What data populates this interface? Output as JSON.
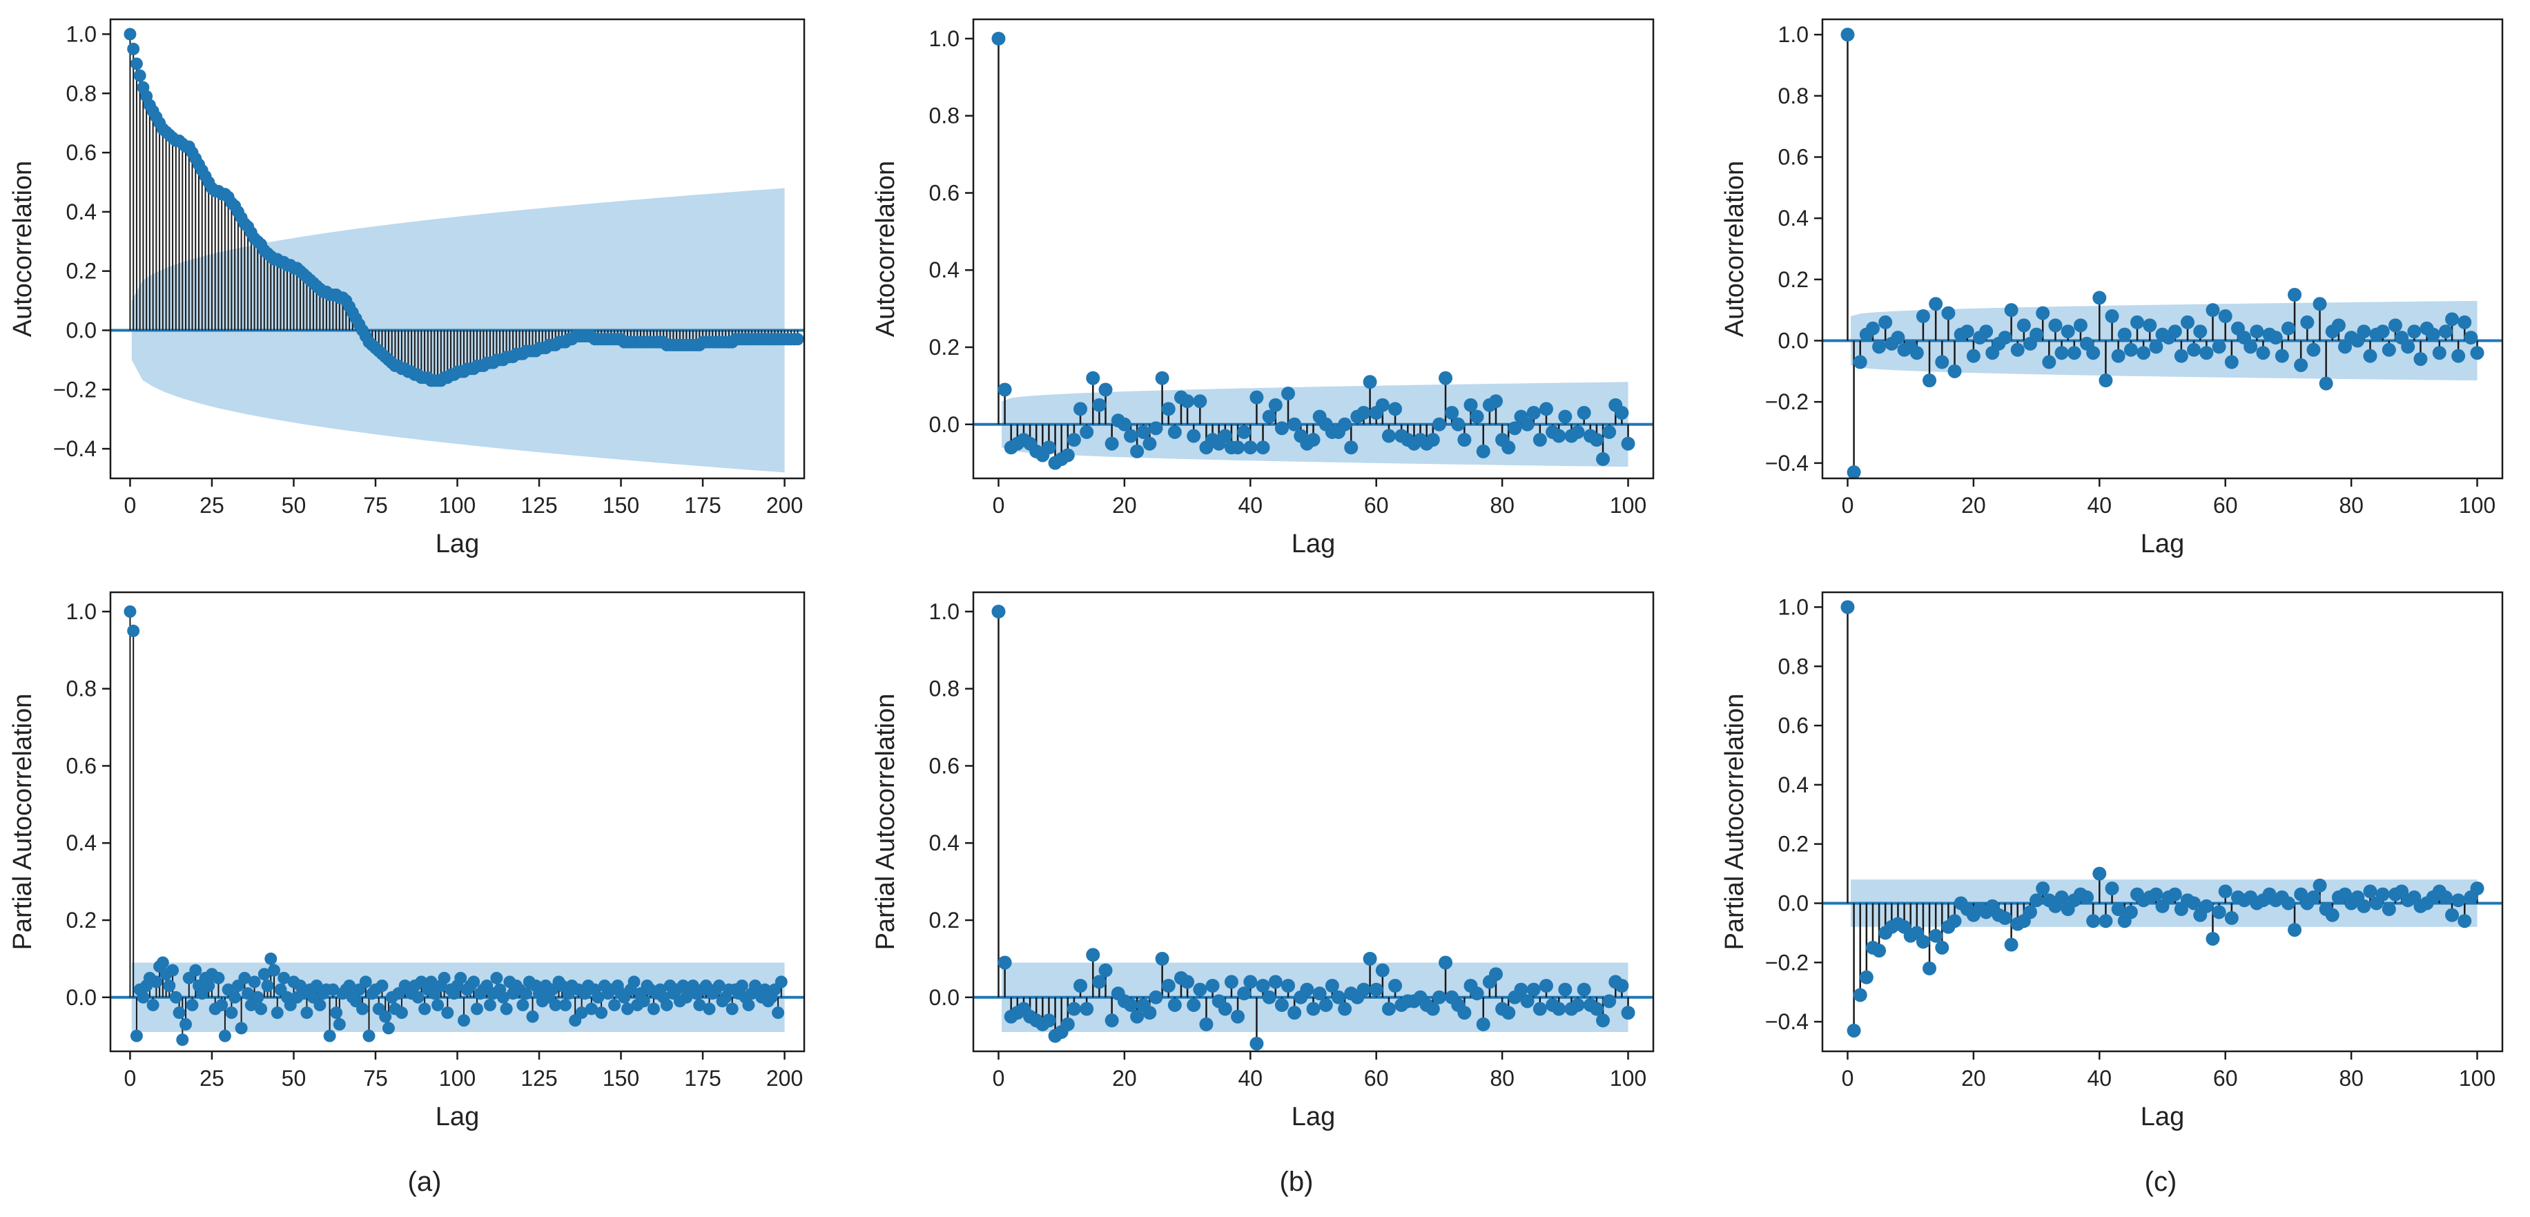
{
  "figure": {
    "panel_labels": [
      "(a)",
      "(b)",
      "(c)"
    ],
    "colors": {
      "marker": "#1f77b4",
      "stem": "#1a1a1a",
      "confidence": "#bcd9ee",
      "axis": "#1a1a1a",
      "text": "#222222"
    }
  },
  "chart_data": [
    {
      "id": "a-acf",
      "type": "stem",
      "title": "",
      "xlabel": "Lag",
      "ylabel": "Autocorrelation",
      "xlim": [
        -6,
        206
      ],
      "ylim": [
        -0.5,
        1.05
      ],
      "xticks": [
        0,
        25,
        50,
        75,
        100,
        125,
        150,
        175,
        200
      ],
      "yticks": [
        1.0,
        0.8,
        0.6,
        0.4,
        0.2,
        0.0,
        -0.2,
        -0.4
      ],
      "confidence_band": {
        "kind": "acf_growing",
        "start": 0.1,
        "end": 0.48
      },
      "x_max": 200,
      "values": [
        1.0,
        0.95,
        0.9,
        0.86,
        0.82,
        0.79,
        0.76,
        0.74,
        0.72,
        0.7,
        0.68,
        0.67,
        0.66,
        0.65,
        0.64,
        0.64,
        0.63,
        0.62,
        0.62,
        0.6,
        0.58,
        0.56,
        0.54,
        0.52,
        0.5,
        0.48,
        0.47,
        0.47,
        0.46,
        0.46,
        0.45,
        0.43,
        0.42,
        0.4,
        0.38,
        0.36,
        0.35,
        0.33,
        0.31,
        0.3,
        0.29,
        0.27,
        0.26,
        0.25,
        0.24,
        0.24,
        0.23,
        0.23,
        0.22,
        0.22,
        0.21,
        0.21,
        0.2,
        0.19,
        0.18,
        0.17,
        0.16,
        0.15,
        0.14,
        0.13,
        0.13,
        0.12,
        0.12,
        0.12,
        0.11,
        0.11,
        0.1,
        0.08,
        0.06,
        0.04,
        0.02,
        0.0,
        -0.02,
        -0.04,
        -0.05,
        -0.06,
        -0.07,
        -0.08,
        -0.09,
        -0.1,
        -0.11,
        -0.12,
        -0.12,
        -0.13,
        -0.13,
        -0.14,
        -0.14,
        -0.15,
        -0.15,
        -0.16,
        -0.16,
        -0.16,
        -0.17,
        -0.17,
        -0.17,
        -0.17,
        -0.16,
        -0.16,
        -0.15,
        -0.15,
        -0.14,
        -0.14,
        -0.14,
        -0.13,
        -0.13,
        -0.13,
        -0.12,
        -0.12,
        -0.12,
        -0.11,
        -0.11,
        -0.11,
        -0.1,
        -0.1,
        -0.1,
        -0.09,
        -0.09,
        -0.09,
        -0.08,
        -0.08,
        -0.08,
        -0.07,
        -0.07,
        -0.07,
        -0.07,
        -0.06,
        -0.06,
        -0.06,
        -0.05,
        -0.05,
        -0.05,
        -0.04,
        -0.04,
        -0.04,
        -0.03,
        -0.03,
        -0.02,
        -0.02,
        -0.02,
        -0.02,
        -0.02,
        -0.02,
        -0.03,
        -0.03,
        -0.03,
        -0.03,
        -0.03,
        -0.03,
        -0.03,
        -0.03,
        -0.03,
        -0.04,
        -0.04,
        -0.04,
        -0.04,
        -0.04,
        -0.04,
        -0.04,
        -0.04,
        -0.04,
        -0.04,
        -0.04,
        -0.04,
        -0.04,
        -0.05,
        -0.05,
        -0.05,
        -0.05,
        -0.05,
        -0.05,
        -0.05,
        -0.05,
        -0.05,
        -0.05,
        -0.05,
        -0.04,
        -0.04,
        -0.04,
        -0.04,
        -0.04,
        -0.04,
        -0.04,
        -0.04,
        -0.04,
        -0.04,
        -0.03,
        -0.03,
        -0.03,
        -0.03,
        -0.03,
        -0.03,
        -0.03,
        -0.03,
        -0.03,
        -0.03,
        -0.03,
        -0.03,
        -0.03,
        -0.03,
        -0.03,
        -0.03,
        -0.03,
        -0.03,
        -0.03,
        -0.03
      ]
    },
    {
      "id": "b-acf",
      "type": "stem",
      "title": "",
      "xlabel": "Lag",
      "ylabel": "Autocorrelation",
      "xlim": [
        -4,
        104
      ],
      "ylim": [
        -0.14,
        1.05
      ],
      "xticks": [
        0,
        20,
        40,
        60,
        80,
        100
      ],
      "yticks": [
        1.0,
        0.8,
        0.6,
        0.4,
        0.2,
        0.0
      ],
      "confidence_band": {
        "kind": "acf_growing",
        "start": 0.06,
        "end": 0.11
      },
      "x_max": 100,
      "values": [
        1.0,
        0.09,
        -0.06,
        -0.05,
        -0.04,
        -0.05,
        -0.07,
        -0.08,
        -0.06,
        -0.1,
        -0.09,
        -0.08,
        -0.04,
        0.04,
        -0.02,
        0.12,
        0.05,
        0.09,
        -0.05,
        0.01,
        0.0,
        -0.03,
        -0.07,
        -0.02,
        -0.05,
        -0.01,
        0.12,
        0.04,
        -0.02,
        0.07,
        0.06,
        -0.03,
        0.06,
        -0.06,
        -0.04,
        -0.05,
        -0.03,
        -0.06,
        -0.06,
        -0.02,
        -0.06,
        0.07,
        -0.06,
        0.02,
        0.05,
        -0.01,
        0.08,
        0.0,
        -0.03,
        -0.05,
        -0.04,
        0.02,
        0.0,
        -0.02,
        -0.02,
        0.0,
        -0.06,
        0.02,
        0.03,
        0.11,
        0.03,
        0.05,
        -0.03,
        0.04,
        -0.03,
        -0.04,
        -0.05,
        -0.04,
        -0.05,
        -0.04,
        0.0,
        0.12,
        0.03,
        0.0,
        -0.04,
        0.05,
        0.02,
        -0.07,
        0.05,
        0.06,
        -0.04,
        -0.06,
        -0.01,
        0.02,
        0.0,
        0.03,
        -0.04,
        0.04,
        -0.02,
        -0.03,
        0.02,
        -0.03,
        -0.02,
        0.03,
        -0.03,
        -0.04,
        -0.09,
        -0.02,
        0.05,
        0.03,
        -0.05
      ]
    },
    {
      "id": "c-acf",
      "type": "stem",
      "title": "",
      "xlabel": "Lag",
      "ylabel": "Autocorrelation",
      "xlim": [
        -4,
        104
      ],
      "ylim": [
        -0.45,
        1.05
      ],
      "xticks": [
        0,
        20,
        40,
        60,
        80,
        100
      ],
      "yticks": [
        1.0,
        0.8,
        0.6,
        0.4,
        0.2,
        0.0,
        -0.2,
        -0.4
      ],
      "confidence_band": {
        "kind": "acf_growing",
        "start": 0.08,
        "end": 0.13
      },
      "x_max": 100,
      "values": [
        1.0,
        -0.43,
        -0.07,
        0.02,
        0.04,
        -0.02,
        0.06,
        -0.01,
        0.01,
        -0.03,
        -0.02,
        -0.04,
        0.08,
        -0.13,
        0.12,
        -0.07,
        0.09,
        -0.1,
        0.02,
        0.03,
        -0.05,
        0.01,
        0.03,
        -0.04,
        -0.01,
        0.01,
        0.1,
        -0.03,
        0.05,
        -0.01,
        0.02,
        0.09,
        -0.07,
        0.05,
        -0.04,
        0.03,
        -0.04,
        0.05,
        -0.01,
        -0.04,
        0.14,
        -0.13,
        0.08,
        -0.05,
        0.02,
        -0.03,
        0.06,
        -0.04,
        0.05,
        -0.02,
        0.02,
        0.01,
        0.03,
        -0.05,
        0.06,
        -0.03,
        0.03,
        -0.04,
        0.1,
        -0.02,
        0.08,
        -0.07,
        0.04,
        0.01,
        -0.02,
        0.03,
        -0.04,
        0.02,
        0.01,
        -0.05,
        0.04,
        0.15,
        -0.08,
        0.06,
        -0.03,
        0.12,
        -0.14,
        0.03,
        0.05,
        -0.02,
        0.01,
        0.0,
        0.03,
        -0.05,
        0.02,
        0.03,
        -0.03,
        0.05,
        0.01,
        -0.02,
        0.03,
        -0.06,
        0.04,
        0.02,
        -0.04,
        0.03,
        0.07,
        -0.05,
        0.06,
        0.01,
        -0.04
      ]
    },
    {
      "id": "a-pacf",
      "type": "stem",
      "title": "",
      "xlabel": "Lag",
      "ylabel": "Partial Autocorrelation",
      "xlim": [
        -6,
        206
      ],
      "ylim": [
        -0.14,
        1.05
      ],
      "xticks": [
        0,
        25,
        50,
        75,
        100,
        125,
        150,
        175,
        200
      ],
      "yticks": [
        1.0,
        0.8,
        0.6,
        0.4,
        0.2,
        0.0
      ],
      "confidence_band": {
        "kind": "constant",
        "start": 0.09,
        "end": 0.09
      },
      "x_max": 200,
      "values": [
        1.0,
        0.95,
        -0.1,
        0.02,
        0.0,
        0.03,
        0.05,
        -0.02,
        0.04,
        0.08,
        0.09,
        0.06,
        0.03,
        0.07,
        0.0,
        -0.04,
        -0.11,
        -0.07,
        0.05,
        -0.02,
        0.07,
        0.03,
        0.01,
        0.05,
        0.03,
        0.06,
        -0.03,
        0.05,
        -0.02,
        -0.1,
        0.02,
        -0.04,
        0.0,
        0.03,
        -0.08,
        0.05,
        0.01,
        -0.02,
        0.04,
        0.0,
        -0.03,
        0.06,
        0.03,
        0.1,
        0.07,
        -0.04,
        0.02,
        0.05,
        0.0,
        -0.02,
        0.04,
        0.0,
        0.03,
        0.01,
        -0.04,
        0.02,
        0.0,
        0.03,
        -0.02,
        0.01,
        0.02,
        -0.1,
        0.02,
        -0.04,
        -0.07,
        0.01,
        0.02,
        0.03,
        0.0,
        -0.01,
        0.02,
        -0.03,
        0.04,
        -0.1,
        0.01,
        0.02,
        -0.03,
        0.03,
        -0.05,
        -0.08,
        0.0,
        -0.03,
        0.01,
        -0.04,
        0.03,
        0.02,
        0.01,
        0.03,
        0.0,
        0.04,
        -0.03,
        0.02,
        0.04,
        0.01,
        -0.02,
        0.03,
        0.05,
        -0.04,
        0.02,
        0.01,
        0.03,
        0.05,
        -0.06,
        0.02,
        0.03,
        0.04,
        -0.03,
        0.01,
        0.02,
        0.03,
        -0.02,
        0.01,
        0.05,
        0.02,
        0.0,
        -0.03,
        0.04,
        0.01,
        0.03,
        0.02,
        -0.02,
        0.01,
        0.04,
        -0.05,
        0.03,
        0.01,
        -0.01,
        0.03,
        0.0,
        0.02,
        -0.02,
        0.04,
        0.03,
        -0.02,
        0.01,
        0.03,
        -0.06,
        0.02,
        -0.04,
        0.01,
        0.03,
        -0.03,
        0.02,
        0.0,
        -0.04,
        0.03,
        0.01,
        0.02,
        -0.02,
        0.03,
        0.01,
        0.0,
        -0.03,
        0.02,
        0.04,
        -0.02,
        0.01,
        -0.01,
        0.03,
        0.02,
        -0.03,
        0.01,
        0.02,
        0.0,
        -0.02,
        0.03,
        0.01,
        0.02,
        -0.01,
        0.03,
        0.0,
        0.02,
        0.03,
        0.01,
        -0.02,
        0.02,
        0.03,
        -0.03,
        0.01,
        0.02,
        0.03,
        -0.01,
        0.0,
        0.02,
        -0.03,
        0.02,
        0.01,
        0.03,
        0.0,
        -0.02,
        0.01,
        0.03,
        0.02,
        0.0,
        0.02,
        -0.01,
        0.0,
        0.02,
        -0.04,
        0.04
      ]
    },
    {
      "id": "b-pacf",
      "type": "stem",
      "title": "",
      "xlabel": "Lag",
      "ylabel": "Partial Autocorrelation",
      "xlim": [
        -4,
        104
      ],
      "ylim": [
        -0.14,
        1.05
      ],
      "xticks": [
        0,
        20,
        40,
        60,
        80,
        100
      ],
      "yticks": [
        1.0,
        0.8,
        0.6,
        0.4,
        0.2,
        0.0
      ],
      "confidence_band": {
        "kind": "constant",
        "start": 0.09,
        "end": 0.09
      },
      "x_max": 100,
      "values": [
        1.0,
        0.09,
        -0.05,
        -0.04,
        -0.03,
        -0.05,
        -0.06,
        -0.07,
        -0.06,
        -0.1,
        -0.09,
        -0.07,
        -0.03,
        0.03,
        -0.03,
        0.11,
        0.04,
        0.07,
        -0.06,
        0.01,
        -0.01,
        -0.02,
        -0.05,
        -0.02,
        -0.04,
        0.0,
        0.1,
        0.03,
        -0.02,
        0.05,
        0.04,
        -0.02,
        0.02,
        -0.07,
        0.03,
        -0.01,
        -0.03,
        0.04,
        -0.05,
        0.01,
        0.04,
        -0.12,
        0.03,
        0.0,
        0.04,
        -0.02,
        0.03,
        -0.04,
        0.0,
        0.02,
        -0.03,
        0.01,
        -0.02,
        0.03,
        0.0,
        -0.03,
        0.01,
        0.0,
        0.02,
        0.1,
        0.02,
        0.07,
        -0.03,
        0.03,
        -0.02,
        -0.01,
        -0.01,
        0.0,
        -0.02,
        -0.03,
        0.0,
        0.09,
        0.0,
        -0.02,
        -0.04,
        0.03,
        0.01,
        -0.07,
        0.04,
        0.06,
        -0.03,
        -0.04,
        0.0,
        0.02,
        -0.01,
        0.02,
        -0.03,
        0.03,
        -0.02,
        -0.03,
        0.02,
        -0.03,
        -0.02,
        0.02,
        -0.02,
        -0.03,
        -0.06,
        -0.01,
        0.04,
        0.03,
        -0.04
      ]
    },
    {
      "id": "c-pacf",
      "type": "stem",
      "title": "",
      "xlabel": "Lag",
      "ylabel": "Partial Autocorrelation",
      "xlim": [
        -4,
        104
      ],
      "ylim": [
        -0.5,
        1.05
      ],
      "xticks": [
        0,
        20,
        40,
        60,
        80,
        100
      ],
      "yticks": [
        1.0,
        0.8,
        0.6,
        0.4,
        0.2,
        0.0,
        -0.2,
        -0.4
      ],
      "confidence_band": {
        "kind": "constant",
        "start": 0.08,
        "end": 0.08
      },
      "x_max": 100,
      "values": [
        1.0,
        -0.43,
        -0.31,
        -0.25,
        -0.15,
        -0.16,
        -0.1,
        -0.08,
        -0.07,
        -0.08,
        -0.11,
        -0.1,
        -0.13,
        -0.22,
        -0.11,
        -0.15,
        -0.08,
        -0.06,
        0.0,
        -0.02,
        -0.04,
        -0.02,
        -0.03,
        -0.01,
        -0.04,
        -0.05,
        -0.14,
        -0.07,
        -0.06,
        -0.03,
        0.01,
        0.05,
        0.01,
        -0.01,
        0.02,
        -0.02,
        0.01,
        0.03,
        0.02,
        -0.06,
        0.1,
        -0.06,
        0.05,
        -0.02,
        -0.06,
        -0.03,
        0.03,
        0.01,
        0.02,
        0.03,
        -0.01,
        0.02,
        0.03,
        -0.02,
        0.01,
        0.0,
        -0.04,
        -0.01,
        -0.12,
        -0.03,
        0.04,
        -0.05,
        0.02,
        0.01,
        0.02,
        0.0,
        0.01,
        0.03,
        0.01,
        0.02,
        0.0,
        -0.09,
        0.03,
        0.0,
        0.02,
        0.06,
        -0.02,
        -0.04,
        0.02,
        0.03,
        0.0,
        0.02,
        -0.01,
        0.04,
        0.0,
        0.03,
        -0.02,
        0.03,
        0.04,
        0.01,
        0.02,
        -0.01,
        0.0,
        0.02,
        0.04,
        0.02,
        -0.04,
        0.01,
        -0.06,
        0.02,
        0.05
      ]
    }
  ]
}
